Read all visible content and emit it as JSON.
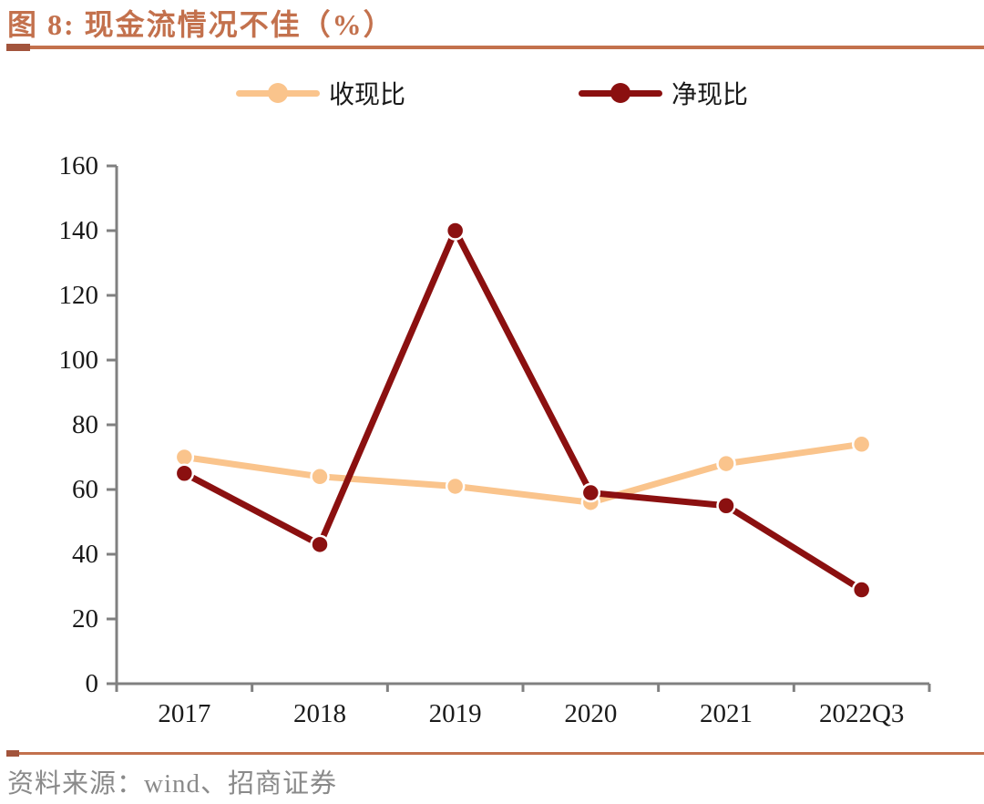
{
  "header": {
    "title": "图 8: 现金流情况不佳（%）"
  },
  "chart_data": {
    "type": "line",
    "title": "图 8: 现金流情况不佳（%）",
    "categories": [
      "2017",
      "2018",
      "2019",
      "2020",
      "2021",
      "2022Q3"
    ],
    "series": [
      {
        "name": "收现比",
        "color": "#FAC48C",
        "values": [
          70,
          64,
          61,
          56,
          68,
          74
        ]
      },
      {
        "name": "净现比",
        "color": "#8B1010",
        "values": [
          65,
          43,
          140,
          59,
          55,
          29
        ]
      }
    ],
    "ylim": [
      0,
      160
    ],
    "yticks": [
      0,
      20,
      40,
      60,
      80,
      100,
      120,
      140,
      160
    ],
    "xlabel": "",
    "ylabel": "",
    "unit": "%",
    "grid": false,
    "legend_position": "top",
    "axis_color": "#808080",
    "marker": "circle"
  },
  "footer": {
    "source": "资料来源：wind、招商证券"
  },
  "colors": {
    "accent": "#C3714D",
    "accent_dark": "#A2543C",
    "text": "#1A1A1A",
    "muted": "#8A8A8A"
  }
}
